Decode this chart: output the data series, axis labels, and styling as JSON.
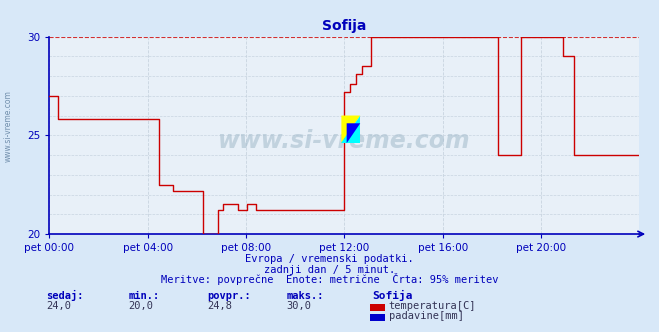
{
  "title": "Sofija",
  "bg_color": "#d8e8f8",
  "plot_bg_color": "#e8f0f8",
  "grid_color": "#c8d4e0",
  "temp_color": "#cc0000",
  "rain_color": "#0000cc",
  "axis_color": "#0000bb",
  "text_color": "#0000bb",
  "ylim": [
    20,
    30
  ],
  "yticks": [
    20,
    25,
    30
  ],
  "xlabel_times": [
    "pet 00:00",
    "pet 04:00",
    "pet 08:00",
    "pet 12:00",
    "pet 16:00",
    "pet 20:00"
  ],
  "subtitle1": "Evropa / vremenski podatki.",
  "subtitle2": "zadnji dan / 5 minut.",
  "subtitle3": "Meritve: povprečne  Enote: metrične  Črta: 95% meritev",
  "stat_headers": [
    "sedaj:",
    "min.:",
    "povpr.:",
    "maks.:"
  ],
  "stat_values": [
    "24,0",
    "20,0",
    "24,8",
    "30,0"
  ],
  "legend_label1": "temperatura[C]",
  "legend_label2": "padavine[mm]",
  "legend_station": "Sofija",
  "watermark": "www.si-vreme.com",
  "temp_data_x": [
    0.0,
    0.015,
    0.015,
    0.185,
    0.185,
    0.21,
    0.21,
    0.26,
    0.26,
    0.285,
    0.285,
    0.295,
    0.295,
    0.32,
    0.32,
    0.335,
    0.335,
    0.35,
    0.35,
    0.5,
    0.5,
    0.51,
    0.51,
    0.52,
    0.52,
    0.53,
    0.53,
    0.545,
    0.545,
    0.6,
    0.6,
    0.64,
    0.64,
    0.76,
    0.76,
    0.8,
    0.8,
    0.87,
    0.87,
    0.89,
    0.89,
    1.0
  ],
  "temp_data_y": [
    27.0,
    27.0,
    25.8,
    25.8,
    22.5,
    22.5,
    22.2,
    22.2,
    20.0,
    20.0,
    21.2,
    21.2,
    21.5,
    21.5,
    21.2,
    21.2,
    21.5,
    21.5,
    21.2,
    21.2,
    27.2,
    27.2,
    27.6,
    27.6,
    28.1,
    28.1,
    28.5,
    28.5,
    30.0,
    30.0,
    30.0,
    30.0,
    30.0,
    30.0,
    24.0,
    24.0,
    30.0,
    30.0,
    29.0,
    29.0,
    24.0,
    24.0
  ]
}
